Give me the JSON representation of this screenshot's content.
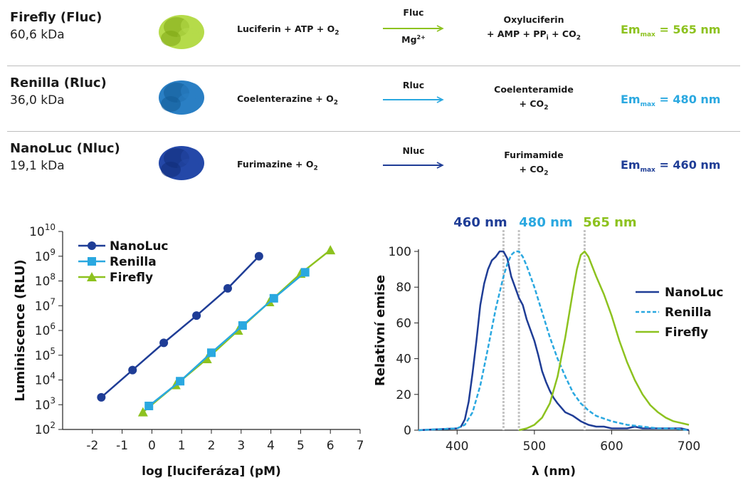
{
  "colors": {
    "firefly": "#8dc21f",
    "renilla": "#2aa8e0",
    "nanoluc": "#1f3d96",
    "dark": "#1a1a1a"
  },
  "reactions": [
    {
      "name": "Firefly (Fluc)",
      "mass": "60,6 kDa",
      "substrate": "Luciferin + ATP + O",
      "substrate_sub": "2",
      "enzyme": "Fluc",
      "cofactor": "Mg",
      "cofactor_sup": "2+",
      "product_line1": "Oxyluciferin",
      "product_line2_a": "+ AMP + PP",
      "product_line2_sub_i": "i",
      "product_line2_b": " + CO",
      "product_line2_sub": "2",
      "em_label": "Em",
      "em_sub": "max",
      "em_value": " = 565 nm"
    },
    {
      "name": "Renilla (Rluc)",
      "mass": "36,0 kDa",
      "substrate": "Coelenterazine + O",
      "substrate_sub": "2",
      "enzyme": "Rluc",
      "product_line1": "Coelenteramide",
      "product_line2": "+ CO",
      "product_line2_sub": "2",
      "em_label": "Em",
      "em_sub": "max",
      "em_value": " = 480 nm"
    },
    {
      "name": "NanoLuc (Nluc)",
      "mass": "19,1 kDa",
      "substrate": "Furimazine + O",
      "substrate_sub": "2",
      "enzyme": "Nluc",
      "product_line1": "Furimamide",
      "product_line2": "+ CO",
      "product_line2_sub": "2",
      "em_label": "Em",
      "em_sub": "max",
      "em_value": " = 460 nm"
    }
  ],
  "chart_data": [
    {
      "type": "line",
      "title": "",
      "xlabel": "log [luciferáza] (pM)",
      "ylabel": "Luminiscence (RLU)",
      "y_scale": "log10",
      "xlim": [
        -3,
        7
      ],
      "ylim_exp": [
        2,
        10
      ],
      "x_ticks": [
        "-2",
        "-1",
        "0",
        "1",
        "2",
        "3",
        "4",
        "5",
        "6",
        "7"
      ],
      "x_tick_values": [
        -2,
        -1,
        0,
        1,
        2,
        3,
        4,
        5,
        6,
        7
      ],
      "y_ticks_base": "10",
      "y_tick_exponents": [
        "2",
        "3",
        "4",
        "5",
        "6",
        "7",
        "8",
        "9",
        "10"
      ],
      "legend": [
        "NanoLuc",
        "Renilla",
        "Firefly"
      ],
      "legend_position": "top-left",
      "series": [
        {
          "name": "NanoLuc",
          "marker": "circle",
          "x": [
            -1.7,
            -0.65,
            0.4,
            1.5,
            2.55,
            3.6
          ],
          "log_y": [
            3.3,
            4.4,
            5.5,
            6.6,
            7.7,
            9.0
          ]
        },
        {
          "name": "Renilla",
          "marker": "square",
          "x": [
            -0.1,
            0.95,
            2.0,
            3.05,
            4.1,
            5.15
          ],
          "log_y": [
            2.95,
            3.95,
            5.1,
            6.2,
            7.3,
            8.35
          ]
        },
        {
          "name": "Firefly",
          "marker": "triangle",
          "x": [
            -0.3,
            0.8,
            1.85,
            2.9,
            3.95,
            5.0,
            6.0
          ],
          "log_y": [
            2.7,
            3.8,
            4.85,
            6.0,
            7.15,
            8.3,
            9.25
          ]
        }
      ]
    },
    {
      "type": "line",
      "title": "",
      "xlabel": "λ (nm)",
      "ylabel": "Relativní emise",
      "xlim": [
        350,
        700
      ],
      "ylim": [
        0,
        100
      ],
      "x_ticks": [
        "400",
        "500",
        "600",
        "700"
      ],
      "x_tick_values": [
        400,
        500,
        600,
        700
      ],
      "y_ticks": [
        "0",
        "20",
        "40",
        "60",
        "80",
        "100"
      ],
      "y_tick_values": [
        0,
        20,
        40,
        60,
        80,
        100
      ],
      "peak_labels": [
        {
          "text": "460 nm",
          "x": 460,
          "series": "NanoLuc"
        },
        {
          "text": "480 nm",
          "x": 480,
          "series": "Renilla"
        },
        {
          "text": "565 nm",
          "x": 565,
          "series": "Firefly"
        }
      ],
      "legend": [
        "NanoLuc",
        "Renilla",
        "Firefly"
      ],
      "legend_position": "right",
      "series": [
        {
          "name": "NanoLuc",
          "style": "solid",
          "x": [
            350,
            400,
            405,
            410,
            415,
            420,
            425,
            430,
            435,
            440,
            445,
            450,
            455,
            460,
            465,
            470,
            475,
            480,
            485,
            490,
            495,
            500,
            505,
            510,
            515,
            520,
            525,
            530,
            540,
            550,
            560,
            570,
            580,
            590,
            600,
            610,
            620,
            630,
            640,
            650,
            660,
            670,
            680,
            690,
            700
          ],
          "y": [
            0,
            1,
            2,
            6,
            16,
            32,
            50,
            70,
            82,
            90,
            95,
            97,
            100,
            100,
            96,
            86,
            80,
            74,
            70,
            62,
            56,
            50,
            42,
            33,
            27,
            22,
            18,
            15,
            10,
            8,
            5,
            3,
            2,
            2,
            1,
            1,
            1,
            2,
            1,
            1,
            1,
            1,
            1,
            1,
            0
          ]
        },
        {
          "name": "Renilla",
          "style": "dashed",
          "x": [
            350,
            400,
            410,
            420,
            430,
            440,
            450,
            460,
            465,
            470,
            475,
            480,
            485,
            490,
            500,
            510,
            520,
            530,
            540,
            550,
            560,
            570,
            580,
            600,
            620,
            640,
            660,
            680,
            700
          ],
          "y": [
            0,
            1,
            3,
            10,
            25,
            46,
            68,
            86,
            93,
            98,
            100,
            100,
            97,
            92,
            80,
            66,
            52,
            40,
            30,
            21,
            15,
            11,
            8,
            5,
            3,
            2,
            1,
            1,
            0
          ]
        },
        {
          "name": "Firefly",
          "style": "solid",
          "x": [
            480,
            490,
            500,
            510,
            520,
            530,
            540,
            550,
            555,
            560,
            565,
            570,
            580,
            590,
            600,
            610,
            620,
            630,
            640,
            650,
            660,
            670,
            680,
            690,
            700
          ],
          "y": [
            0,
            1,
            3,
            7,
            15,
            30,
            52,
            78,
            90,
            98,
            100,
            97,
            86,
            76,
            64,
            50,
            38,
            28,
            20,
            14,
            10,
            7,
            5,
            4,
            3
          ]
        }
      ]
    }
  ]
}
